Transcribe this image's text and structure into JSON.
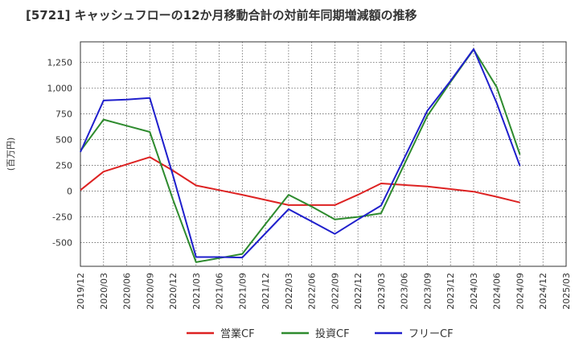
{
  "chart_data": {
    "type": "line",
    "title": "[5721]  キャッシュフローの12か月移動合計の対前年同期増減額の推移",
    "ylabel": "(百万円)",
    "xlabel": "",
    "ylim": [
      -730,
      1450
    ],
    "y_ticks": [
      -500,
      -250,
      0,
      250,
      500,
      750,
      1000,
      1250
    ],
    "y_tick_labels": [
      "-500",
      "-250",
      "0",
      "250",
      "500",
      "750",
      "1,000",
      "1,250"
    ],
    "categories": [
      "2019/12",
      "2020/03",
      "2020/06",
      "2020/09",
      "2020/12",
      "2021/03",
      "2021/06",
      "2021/09",
      "2021/12",
      "2022/03",
      "2022/06",
      "2022/09",
      "2022/12",
      "2023/03",
      "2023/06",
      "2023/09",
      "2023/12",
      "2024/03",
      "2024/06",
      "2024/09",
      "2024/12",
      "2025/03"
    ],
    "grid": true,
    "legend_position": "bottom",
    "series": [
      {
        "name": "営業CF",
        "color": "#dd2222",
        "values": [
          10,
          190,
          260,
          330,
          200,
          55,
          10,
          -35,
          -85,
          -135,
          -135,
          -135,
          -35,
          75,
          60,
          45,
          20,
          -5,
          -55,
          -110,
          null,
          null
        ]
      },
      {
        "name": "投資CF",
        "color": "#2e8b2e",
        "values": [
          390,
          695,
          635,
          575,
          -80,
          -690,
          -650,
          -610,
          -320,
          -35,
          -150,
          -275,
          -250,
          -215,
          260,
          730,
          1060,
          1375,
          1010,
          355,
          null,
          null
        ]
      },
      {
        "name": "フリーCF",
        "color": "#1f1fcc",
        "values": [
          380,
          880,
          890,
          905,
          155,
          -640,
          -640,
          -645,
          -410,
          -175,
          -295,
          -415,
          -275,
          -140,
          320,
          780,
          1070,
          1380,
          855,
          245,
          null,
          null
        ]
      }
    ]
  }
}
